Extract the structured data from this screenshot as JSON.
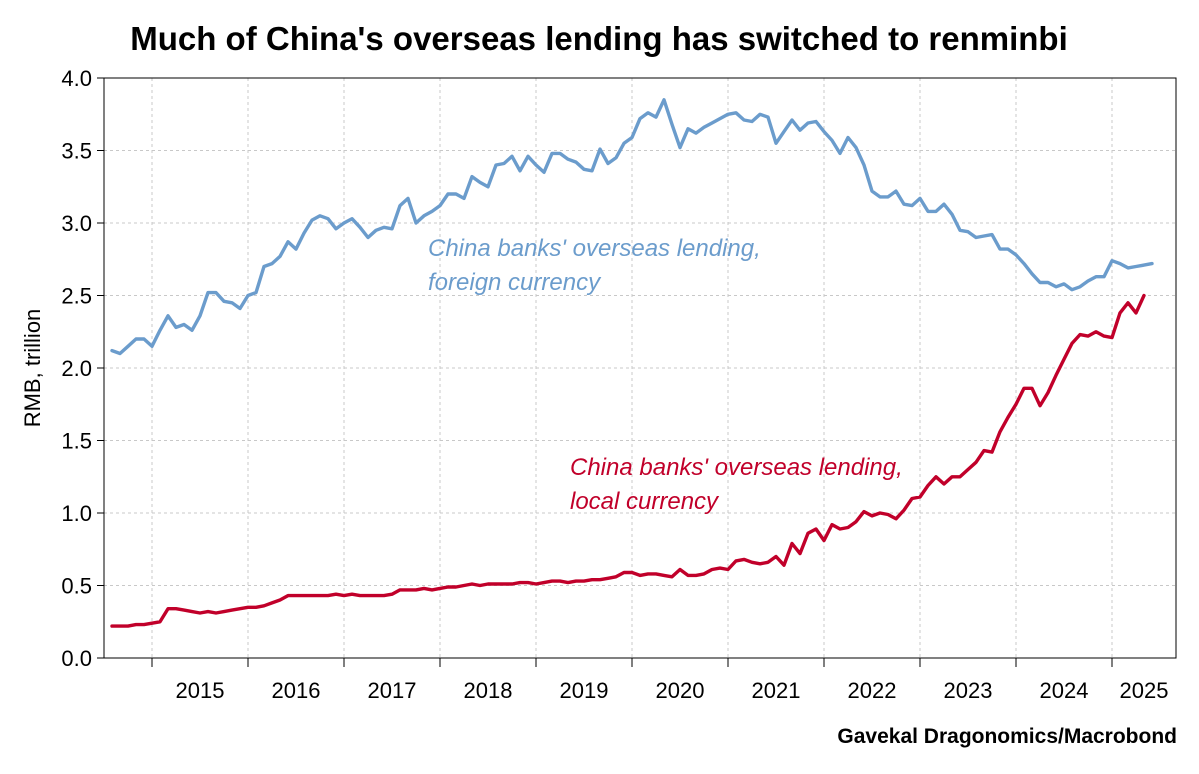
{
  "chart_data": {
    "type": "line",
    "title": "Much of China's overseas lending has switched to renminbi",
    "ylabel": "RMB, trillion",
    "xlabel": "",
    "ylim": [
      0,
      4
    ],
    "y_ticks": [
      "0.0",
      "0.5",
      "1.0",
      "1.5",
      "2.0",
      "2.5",
      "3.0",
      "3.5",
      "4.0"
    ],
    "x_range": [
      "2014-07",
      "2025-09"
    ],
    "x_ticks": [
      "2015",
      "2016",
      "2017",
      "2018",
      "2019",
      "2020",
      "2021",
      "2022",
      "2023",
      "2024",
      "2025"
    ],
    "grid": true,
    "colors": {
      "foreign": "#6b9ccc",
      "local": "#c1002a"
    },
    "source": "Gavekal Dragonomics/Macrobond",
    "series": [
      {
        "id": "foreign",
        "annotation": [
          "China banks' overseas lending,",
          "foreign currency"
        ],
        "points": [
          [
            "2014-08",
            2.12
          ],
          [
            "2014-09",
            2.1
          ],
          [
            "2014-10",
            2.15
          ],
          [
            "2014-11",
            2.2
          ],
          [
            "2014-12",
            2.2
          ],
          [
            "2015-01",
            2.15
          ],
          [
            "2015-02",
            2.26
          ],
          [
            "2015-03",
            2.36
          ],
          [
            "2015-04",
            2.28
          ],
          [
            "2015-05",
            2.3
          ],
          [
            "2015-06",
            2.26
          ],
          [
            "2015-07",
            2.36
          ],
          [
            "2015-08",
            2.52
          ],
          [
            "2015-09",
            2.52
          ],
          [
            "2015-10",
            2.46
          ],
          [
            "2015-11",
            2.45
          ],
          [
            "2015-12",
            2.41
          ],
          [
            "2016-01",
            2.5
          ],
          [
            "2016-02",
            2.52
          ],
          [
            "2016-03",
            2.7
          ],
          [
            "2016-04",
            2.72
          ],
          [
            "2016-05",
            2.77
          ],
          [
            "2016-06",
            2.87
          ],
          [
            "2016-07",
            2.82
          ],
          [
            "2016-08",
            2.93
          ],
          [
            "2016-09",
            3.02
          ],
          [
            "2016-10",
            3.05
          ],
          [
            "2016-11",
            3.03
          ],
          [
            "2016-12",
            2.96
          ],
          [
            "2017-01",
            3.0
          ],
          [
            "2017-02",
            3.03
          ],
          [
            "2017-03",
            2.97
          ],
          [
            "2017-04",
            2.9
          ],
          [
            "2017-05",
            2.95
          ],
          [
            "2017-06",
            2.97
          ],
          [
            "2017-07",
            2.96
          ],
          [
            "2017-08",
            3.12
          ],
          [
            "2017-09",
            3.17
          ],
          [
            "2017-10",
            3.0
          ],
          [
            "2017-11",
            3.05
          ],
          [
            "2017-12",
            3.08
          ],
          [
            "2018-01",
            3.12
          ],
          [
            "2018-02",
            3.2
          ],
          [
            "2018-03",
            3.2
          ],
          [
            "2018-04",
            3.17
          ],
          [
            "2018-05",
            3.32
          ],
          [
            "2018-06",
            3.28
          ],
          [
            "2018-07",
            3.25
          ],
          [
            "2018-08",
            3.4
          ],
          [
            "2018-09",
            3.41
          ],
          [
            "2018-10",
            3.46
          ],
          [
            "2018-11",
            3.36
          ],
          [
            "2018-12",
            3.46
          ],
          [
            "2019-01",
            3.4
          ],
          [
            "2019-02",
            3.35
          ],
          [
            "2019-03",
            3.48
          ],
          [
            "2019-04",
            3.48
          ],
          [
            "2019-05",
            3.44
          ],
          [
            "2019-06",
            3.42
          ],
          [
            "2019-07",
            3.37
          ],
          [
            "2019-08",
            3.36
          ],
          [
            "2019-09",
            3.51
          ],
          [
            "2019-10",
            3.41
          ],
          [
            "2019-11",
            3.45
          ],
          [
            "2019-12",
            3.55
          ],
          [
            "2020-01",
            3.59
          ],
          [
            "2020-02",
            3.72
          ],
          [
            "2020-03",
            3.76
          ],
          [
            "2020-04",
            3.73
          ],
          [
            "2020-05",
            3.85
          ],
          [
            "2020-06",
            3.68
          ],
          [
            "2020-07",
            3.52
          ],
          [
            "2020-08",
            3.65
          ],
          [
            "2020-09",
            3.62
          ],
          [
            "2020-10",
            3.66
          ],
          [
            "2020-11",
            3.69
          ],
          [
            "2020-12",
            3.72
          ],
          [
            "2021-01",
            3.75
          ],
          [
            "2021-02",
            3.76
          ],
          [
            "2021-03",
            3.71
          ],
          [
            "2021-04",
            3.7
          ],
          [
            "2021-05",
            3.75
          ],
          [
            "2021-06",
            3.73
          ],
          [
            "2021-07",
            3.55
          ],
          [
            "2021-08",
            3.63
          ],
          [
            "2021-09",
            3.71
          ],
          [
            "2021-10",
            3.64
          ],
          [
            "2021-11",
            3.69
          ],
          [
            "2021-12",
            3.7
          ],
          [
            "2022-01",
            3.63
          ],
          [
            "2022-02",
            3.57
          ],
          [
            "2022-03",
            3.48
          ],
          [
            "2022-04",
            3.59
          ],
          [
            "2022-05",
            3.52
          ],
          [
            "2022-06",
            3.4
          ],
          [
            "2022-07",
            3.22
          ],
          [
            "2022-08",
            3.18
          ],
          [
            "2022-09",
            3.18
          ],
          [
            "2022-10",
            3.22
          ],
          [
            "2022-11",
            3.13
          ],
          [
            "2022-12",
            3.12
          ],
          [
            "2023-01",
            3.17
          ],
          [
            "2023-02",
            3.08
          ],
          [
            "2023-03",
            3.08
          ],
          [
            "2023-04",
            3.13
          ],
          [
            "2023-05",
            3.06
          ],
          [
            "2023-06",
            2.95
          ],
          [
            "2023-07",
            2.94
          ],
          [
            "2023-08",
            2.9
          ],
          [
            "2023-09",
            2.91
          ],
          [
            "2023-10",
            2.92
          ],
          [
            "2023-11",
            2.82
          ],
          [
            "2023-12",
            2.82
          ],
          [
            "2024-01",
            2.78
          ],
          [
            "2024-02",
            2.72
          ],
          [
            "2024-03",
            2.65
          ],
          [
            "2024-04",
            2.59
          ],
          [
            "2024-05",
            2.59
          ],
          [
            "2024-06",
            2.56
          ],
          [
            "2024-07",
            2.58
          ],
          [
            "2024-08",
            2.54
          ],
          [
            "2024-09",
            2.56
          ],
          [
            "2024-10",
            2.6
          ],
          [
            "2024-11",
            2.63
          ],
          [
            "2024-12",
            2.63
          ],
          [
            "2025-01",
            2.74
          ],
          [
            "2025-02",
            2.72
          ],
          [
            "2025-03",
            2.69
          ],
          [
            "2025-04",
            2.7
          ],
          [
            "2025-05",
            2.71
          ],
          [
            "2025-06",
            2.72
          ]
        ]
      },
      {
        "id": "local",
        "annotation": [
          "China banks' overseas lending,",
          "local currency"
        ],
        "points": [
          [
            "2014-08",
            0.22
          ],
          [
            "2014-09",
            0.22
          ],
          [
            "2014-10",
            0.22
          ],
          [
            "2014-11",
            0.23
          ],
          [
            "2014-12",
            0.23
          ],
          [
            "2015-01",
            0.24
          ],
          [
            "2015-02",
            0.25
          ],
          [
            "2015-03",
            0.34
          ],
          [
            "2015-04",
            0.34
          ],
          [
            "2015-05",
            0.33
          ],
          [
            "2015-06",
            0.32
          ],
          [
            "2015-07",
            0.31
          ],
          [
            "2015-08",
            0.32
          ],
          [
            "2015-09",
            0.31
          ],
          [
            "2015-10",
            0.32
          ],
          [
            "2015-11",
            0.33
          ],
          [
            "2015-12",
            0.34
          ],
          [
            "2016-01",
            0.35
          ],
          [
            "2016-02",
            0.35
          ],
          [
            "2016-03",
            0.36
          ],
          [
            "2016-04",
            0.38
          ],
          [
            "2016-05",
            0.4
          ],
          [
            "2016-06",
            0.43
          ],
          [
            "2016-07",
            0.43
          ],
          [
            "2016-08",
            0.43
          ],
          [
            "2016-09",
            0.43
          ],
          [
            "2016-10",
            0.43
          ],
          [
            "2016-11",
            0.43
          ],
          [
            "2016-12",
            0.44
          ],
          [
            "2017-01",
            0.43
          ],
          [
            "2017-02",
            0.44
          ],
          [
            "2017-03",
            0.43
          ],
          [
            "2017-04",
            0.43
          ],
          [
            "2017-05",
            0.43
          ],
          [
            "2017-06",
            0.43
          ],
          [
            "2017-07",
            0.44
          ],
          [
            "2017-08",
            0.47
          ],
          [
            "2017-09",
            0.47
          ],
          [
            "2017-10",
            0.47
          ],
          [
            "2017-11",
            0.48
          ],
          [
            "2017-12",
            0.47
          ],
          [
            "2018-01",
            0.48
          ],
          [
            "2018-02",
            0.49
          ],
          [
            "2018-03",
            0.49
          ],
          [
            "2018-04",
            0.5
          ],
          [
            "2018-05",
            0.51
          ],
          [
            "2018-06",
            0.5
          ],
          [
            "2018-07",
            0.51
          ],
          [
            "2018-08",
            0.51
          ],
          [
            "2018-09",
            0.51
          ],
          [
            "2018-10",
            0.51
          ],
          [
            "2018-11",
            0.52
          ],
          [
            "2018-12",
            0.52
          ],
          [
            "2019-01",
            0.51
          ],
          [
            "2019-02",
            0.52
          ],
          [
            "2019-03",
            0.53
          ],
          [
            "2019-04",
            0.53
          ],
          [
            "2019-05",
            0.52
          ],
          [
            "2019-06",
            0.53
          ],
          [
            "2019-07",
            0.53
          ],
          [
            "2019-08",
            0.54
          ],
          [
            "2019-09",
            0.54
          ],
          [
            "2019-10",
            0.55
          ],
          [
            "2019-11",
            0.56
          ],
          [
            "2019-12",
            0.59
          ],
          [
            "2020-01",
            0.59
          ],
          [
            "2020-02",
            0.57
          ],
          [
            "2020-03",
            0.58
          ],
          [
            "2020-04",
            0.58
          ],
          [
            "2020-05",
            0.57
          ],
          [
            "2020-06",
            0.56
          ],
          [
            "2020-07",
            0.61
          ],
          [
            "2020-08",
            0.57
          ],
          [
            "2020-09",
            0.57
          ],
          [
            "2020-10",
            0.58
          ],
          [
            "2020-11",
            0.61
          ],
          [
            "2020-12",
            0.62
          ],
          [
            "2021-01",
            0.61
          ],
          [
            "2021-02",
            0.67
          ],
          [
            "2021-03",
            0.68
          ],
          [
            "2021-04",
            0.66
          ],
          [
            "2021-05",
            0.65
          ],
          [
            "2021-06",
            0.66
          ],
          [
            "2021-07",
            0.7
          ],
          [
            "2021-08",
            0.64
          ],
          [
            "2021-09",
            0.79
          ],
          [
            "2021-10",
            0.72
          ],
          [
            "2021-11",
            0.86
          ],
          [
            "2021-12",
            0.89
          ],
          [
            "2022-01",
            0.81
          ],
          [
            "2022-02",
            0.92
          ],
          [
            "2022-03",
            0.89
          ],
          [
            "2022-04",
            0.9
          ],
          [
            "2022-05",
            0.94
          ],
          [
            "2022-06",
            1.01
          ],
          [
            "2022-07",
            0.98
          ],
          [
            "2022-08",
            1.0
          ],
          [
            "2022-09",
            0.99
          ],
          [
            "2022-10",
            0.96
          ],
          [
            "2022-11",
            1.02
          ],
          [
            "2022-12",
            1.1
          ],
          [
            "2023-01",
            1.11
          ],
          [
            "2023-02",
            1.19
          ],
          [
            "2023-03",
            1.25
          ],
          [
            "2023-04",
            1.2
          ],
          [
            "2023-05",
            1.25
          ],
          [
            "2023-06",
            1.25
          ],
          [
            "2023-07",
            1.3
          ],
          [
            "2023-08",
            1.35
          ],
          [
            "2023-09",
            1.43
          ],
          [
            "2023-10",
            1.42
          ],
          [
            "2023-11",
            1.56
          ],
          [
            "2023-12",
            1.66
          ],
          [
            "2024-01",
            1.75
          ],
          [
            "2024-02",
            1.86
          ],
          [
            "2024-03",
            1.86
          ],
          [
            "2024-04",
            1.74
          ],
          [
            "2024-05",
            1.83
          ],
          [
            "2024-06",
            1.95
          ],
          [
            "2024-07",
            2.06
          ],
          [
            "2024-08",
            2.17
          ],
          [
            "2024-09",
            2.23
          ],
          [
            "2024-10",
            2.22
          ],
          [
            "2024-11",
            2.25
          ],
          [
            "2024-12",
            2.22
          ],
          [
            "2025-01",
            2.21
          ],
          [
            "2025-02",
            2.38
          ],
          [
            "2025-03",
            2.45
          ],
          [
            "2025-04",
            2.38
          ],
          [
            "2025-05",
            2.5
          ]
        ]
      }
    ]
  }
}
